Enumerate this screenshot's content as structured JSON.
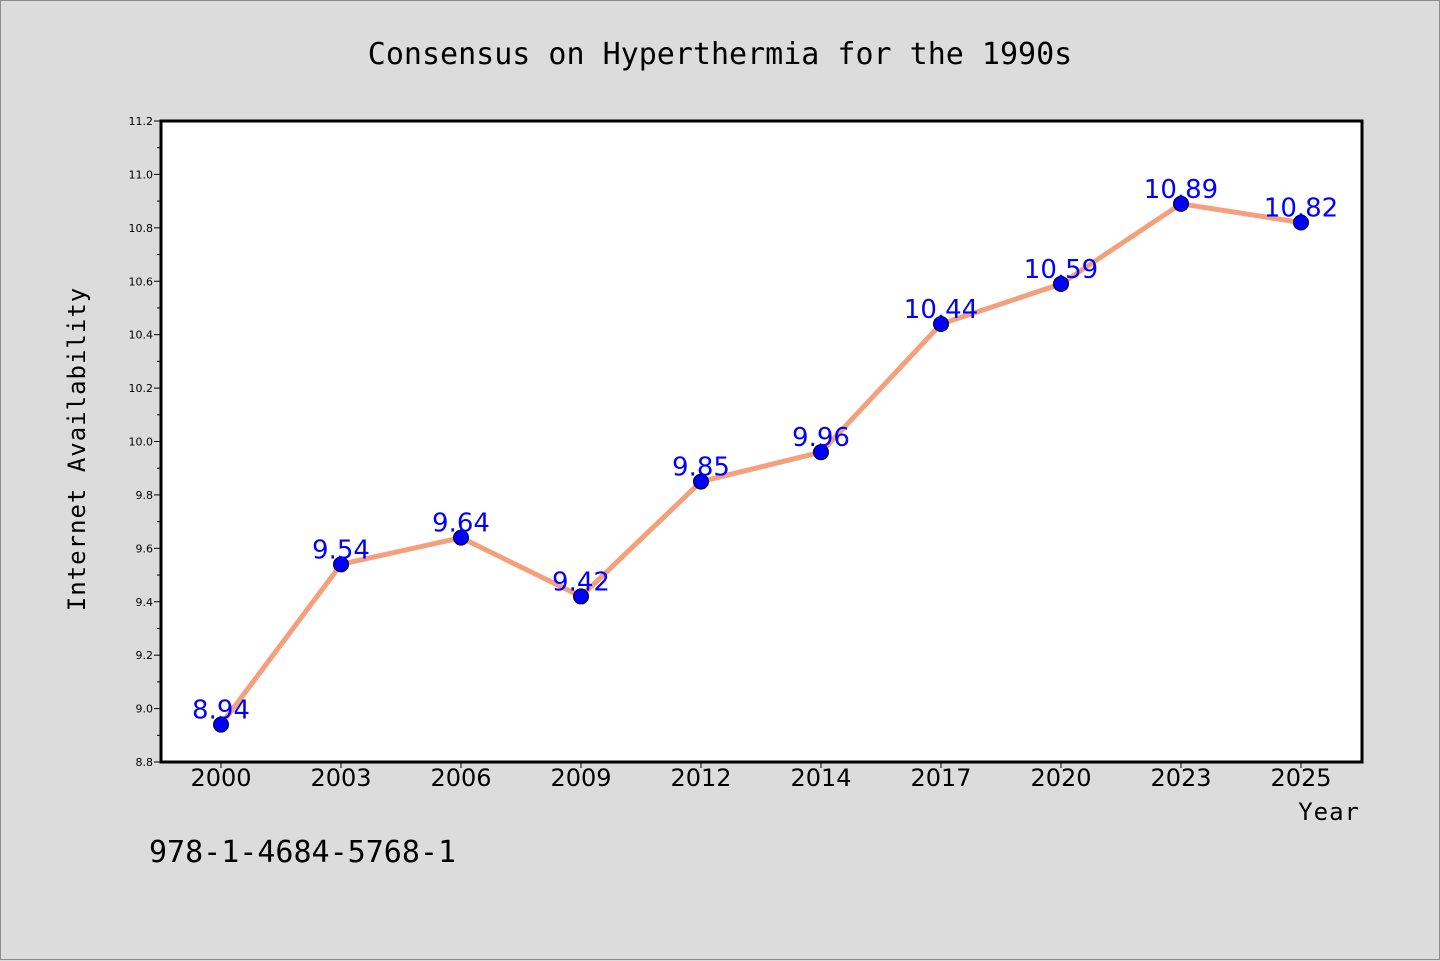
{
  "chart_data": {
    "type": "line",
    "title": "Consensus on Hyperthermia for the 1990s",
    "xlabel": "Year",
    "ylabel": "Internet Availability",
    "categories": [
      "2000",
      "2003",
      "2006",
      "2009",
      "2012",
      "2014",
      "2017",
      "2020",
      "2023",
      "2025"
    ],
    "series": [
      {
        "values": [
          8.94,
          9.54,
          9.64,
          9.42,
          9.85,
          9.96,
          10.44,
          10.59,
          10.89,
          10.82
        ],
        "labels": [
          "8.94",
          "9.54",
          "9.64",
          "9.42",
          "9.85",
          "9.96",
          "10.44",
          "10.59",
          "10.89",
          "10.82"
        ],
        "line_color": "#f4a07c",
        "marker_color": "#0000ff",
        "label_color": "#0000ff"
      }
    ],
    "ylim": [
      8.8,
      11.2
    ],
    "yticks": [
      "8.8",
      "9.0",
      "9.2",
      "9.4",
      "9.6",
      "9.8",
      "10.0",
      "10.2",
      "10.4",
      "10.6",
      "10.8",
      "11.0",
      "11.2"
    ],
    "grid": false,
    "legend": "none"
  },
  "footnote": "978-1-4684-5768-1",
  "colors": {
    "background": "#dcdcdc",
    "plot_background": "#ffffff"
  }
}
